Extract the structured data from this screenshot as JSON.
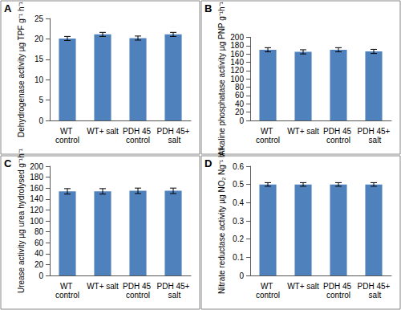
{
  "chart_data": [
    {
      "type": "bar",
      "title": "A",
      "ylabel": "Dehydrogenase activity µg TPF g⁻¹ h⁻¹",
      "categories": [
        "WT control",
        "WT+ salt",
        "PDH 45 control",
        "PDH 45+ salt"
      ],
      "values": [
        20.1,
        21.1,
        20.2,
        21.1
      ],
      "errors": [
        0.5,
        0.5,
        0.5,
        0.5
      ],
      "color": "#4f81bd",
      "ylim": [
        0,
        25
      ],
      "yticks": [
        0,
        5,
        10,
        15,
        20,
        25
      ],
      "grid": false
    },
    {
      "type": "bar",
      "title": "B",
      "ylabel": "Alkaline phosphatase activity µg PNP g⁻¹h⁻¹",
      "categories": [
        "WT control",
        "WT+ salt",
        "PDH 45 control",
        "PDH 45+ salt"
      ],
      "values": [
        170,
        165,
        170,
        166
      ],
      "errors": [
        5,
        5,
        5,
        5
      ],
      "color": "#4f81bd",
      "ylim": [
        0,
        200
      ],
      "yticks": [
        0,
        20,
        40,
        60,
        80,
        100,
        120,
        140,
        160,
        180,
        200
      ],
      "grid": false
    },
    {
      "type": "bar",
      "title": "C",
      "ylabel": "Urease activity µg urea hydrolysed g⁻¹h⁻¹",
      "categories": [
        "WT control",
        "WT+ salt",
        "PDH 45 control",
        "PDH 45+ salt"
      ],
      "values": [
        154,
        154,
        155,
        155
      ],
      "errors": [
        5,
        5,
        5,
        5
      ],
      "color": "#4f81bd",
      "ylim": [
        0,
        200
      ],
      "yticks": [
        0,
        20,
        40,
        60,
        80,
        100,
        120,
        140,
        160,
        180,
        200
      ],
      "grid": false
    },
    {
      "type": "bar",
      "title": "D",
      "ylabel": "Nitrate reductase activity µg NO₂ Ng⁻¹ h⁻¹",
      "categories": [
        "WT control",
        "WT+ salt",
        "PDH 45 control",
        "PDH 45+ salt"
      ],
      "values": [
        0.5,
        0.5,
        0.5,
        0.5
      ],
      "errors": [
        0.01,
        0.01,
        0.01,
        0.01
      ],
      "color": "#4f81bd",
      "ylim": [
        0,
        0.6
      ],
      "yticks": [
        0,
        0.1,
        0.2,
        0.3,
        0.4,
        0.5,
        0.6
      ],
      "grid": false
    }
  ]
}
